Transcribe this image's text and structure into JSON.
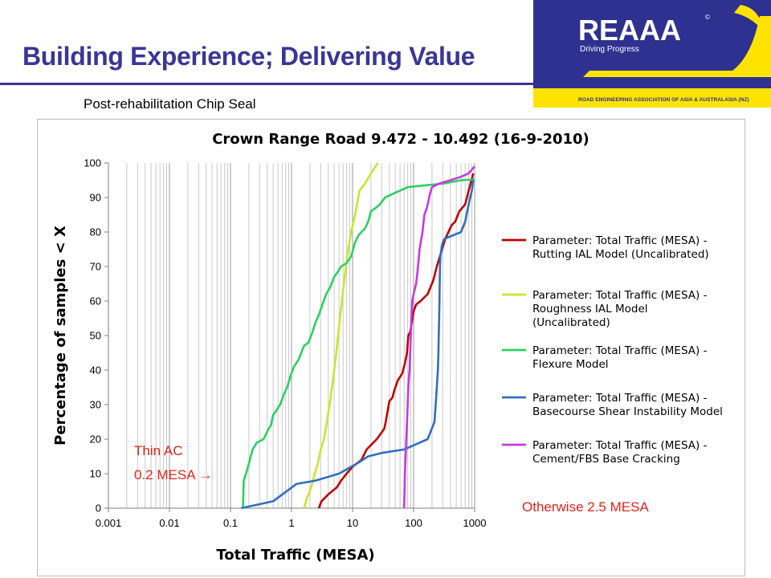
{
  "slide": {
    "title": "Building Experience; Delivering Value",
    "subtitle": "Post-rehabilitation Chip Seal"
  },
  "logo": {
    "name": "REAAA",
    "tagline": "Driving Progress",
    "org": "ROAD ENGINEERING ASSOCIATION OF ASIA & AUSTRALASIA (NZ)",
    "colors": {
      "navy": "#2e3190",
      "yellow": "#ffe300"
    }
  },
  "chart_data": {
    "type": "line",
    "title": "Crown Range Road 9.472 - 10.492 (16-9-2010)",
    "xlabel": "Total Traffic (MESA)",
    "ylabel": "Percentage of samples < X",
    "x_scale": "log",
    "xlim": [
      0.001,
      1000
    ],
    "ylim": [
      0,
      100
    ],
    "x_ticks": [
      "0.001",
      "0.01",
      "0.1",
      "1",
      "10",
      "100",
      "1000"
    ],
    "y_ticks": [
      "0",
      "10",
      "20",
      "30",
      "40",
      "50",
      "60",
      "70",
      "80",
      "90",
      "100"
    ],
    "grid": "vertical minor log gridlines",
    "legend_position": "right",
    "series": [
      {
        "name_lines": [
          "Parameter: Total Traffic (MESA) -",
          "Rutting IAL Model (Uncalibrated)"
        ],
        "color": "#c00000",
        "x": [
          2.8,
          3.1,
          4,
          5.5,
          6.5,
          8,
          10,
          14,
          17,
          25,
          33,
          35,
          40,
          45,
          48,
          55,
          65,
          72,
          78,
          82,
          88,
          92,
          100,
          110,
          130,
          170,
          210,
          240,
          270,
          330,
          420,
          480,
          560,
          700,
          800,
          950
        ],
        "y": [
          0,
          2,
          4,
          6,
          8,
          10,
          12,
          14,
          17,
          20,
          23,
          25,
          31,
          32,
          34,
          37,
          39,
          42,
          45,
          50,
          51,
          53,
          57,
          59,
          60,
          62,
          66,
          70,
          73,
          78,
          82,
          83,
          86,
          88,
          92,
          97
        ]
      },
      {
        "name_lines": [
          "Parameter: Total Traffic (MESA) -",
          "Roughness IAL Model",
          "(Uncalibrated)"
        ],
        "color": "#c8e62e",
        "x": [
          1.6,
          1.8,
          2.1,
          2.4,
          2.7,
          3.0,
          3.4,
          3.8,
          4.2,
          4.6,
          5.0,
          5.4,
          5.8,
          6.2,
          6.7,
          7.2,
          7.8,
          8.5,
          9.5,
          11,
          13,
          16,
          20,
          26
        ],
        "y": [
          0,
          3,
          6,
          10,
          13,
          17,
          20,
          25,
          30,
          35,
          40,
          45,
          50,
          55,
          60,
          65,
          70,
          75,
          80,
          85,
          92,
          94,
          97,
          100
        ]
      },
      {
        "name_lines": [
          "Parameter: Total Traffic (MESA) -",
          "Flexure Model"
        ],
        "color": "#2bd062",
        "x": [
          0.16,
          0.165,
          0.18,
          0.2,
          0.23,
          0.27,
          0.35,
          0.42,
          0.46,
          0.5,
          0.55,
          0.65,
          0.75,
          0.85,
          0.95,
          1.1,
          1.3,
          1.6,
          1.9,
          2.2,
          2.5,
          2.8,
          3.2,
          3.7,
          4.3,
          5.0,
          5.5,
          6.5,
          8.0,
          9.5,
          11,
          12.5,
          14,
          16,
          18,
          20,
          24,
          28,
          34,
          45,
          60,
          70,
          80,
          150,
          300,
          600,
          1000
        ],
        "y": [
          0,
          8,
          10,
          13,
          17,
          19,
          20,
          23,
          24,
          27,
          28,
          30,
          33,
          35,
          38,
          41,
          43,
          47,
          48,
          51,
          54,
          56,
          59,
          62,
          64,
          67,
          68,
          70,
          71,
          73,
          77,
          79,
          80,
          81,
          83,
          86,
          87,
          88,
          90,
          91,
          92,
          92.5,
          93,
          93.5,
          94,
          95,
          95.2
        ]
      },
      {
        "name_lines": [
          "Parameter: Total Traffic (MESA) -",
          "Basecourse Shear Instability Model"
        ],
        "color": "#2f6fc1",
        "x": [
          0.15,
          0.5,
          1.2,
          2.5,
          6,
          12,
          18,
          30,
          70,
          170,
          220,
          230,
          240,
          250,
          255,
          258,
          262,
          265,
          268,
          270,
          275,
          280,
          285,
          290,
          300,
          320,
          600,
          700,
          800,
          900,
          950
        ],
        "y": [
          0,
          2,
          7,
          8,
          10,
          13,
          15,
          16,
          17,
          20,
          25,
          30,
          35,
          40,
          45,
          50,
          55,
          60,
          65,
          70,
          73,
          74,
          75,
          76,
          77,
          78,
          80,
          83,
          88,
          92,
          95
        ]
      },
      {
        "name_lines": [
          "Parameter: Total Traffic (MESA) -",
          "Cement/FBS Base Cracking"
        ],
        "color": "#c43ae2",
        "x": [
          70,
          72,
          74,
          76,
          78,
          80,
          82,
          84,
          86,
          88,
          90,
          92,
          95,
          100,
          110,
          115,
          118,
          125,
          140,
          150,
          165,
          175,
          185,
          200,
          260,
          400,
          600,
          800,
          1000
        ],
        "y": [
          0,
          10,
          15,
          20,
          25,
          30,
          35,
          38,
          40,
          45,
          50,
          55,
          60,
          62,
          65,
          68,
          70,
          75,
          80,
          85,
          87,
          89,
          91,
          93,
          94,
          95,
          96,
          97,
          99
        ]
      }
    ],
    "annotations": [
      {
        "lines": [
          "Thin AC",
          "0.2 MESA →"
        ],
        "color": "#e2231a"
      },
      {
        "lines": [
          "Otherwise 2.5 MESA"
        ],
        "color": "#e2231a"
      }
    ]
  }
}
